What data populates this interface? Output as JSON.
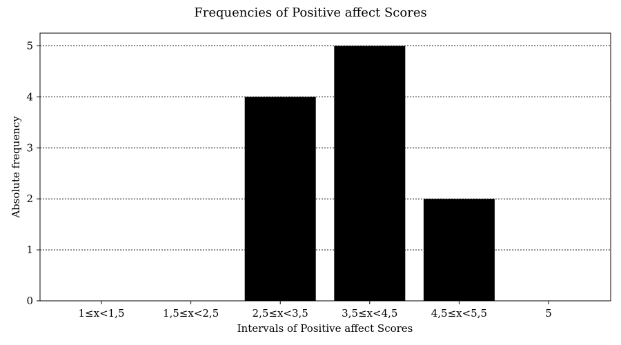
{
  "chart_data": {
    "type": "bar",
    "title": "Frequencies of Positive affect Scores",
    "xlabel": "Intervals of Positive affect Scores",
    "ylabel": "Absolute frequency",
    "categories": [
      "1≤x<1,5",
      "1,5≤x<2,5",
      "2,5≤x<3,5",
      "3,5≤x<4,5",
      "4,5≤x<5,5",
      "5"
    ],
    "values": [
      0,
      0,
      4,
      5,
      2,
      0
    ],
    "ylim": [
      0,
      5.25
    ],
    "yticks": [
      0,
      1,
      2,
      3,
      4,
      5
    ],
    "grid": {
      "y": true,
      "x": false,
      "style": "dotted"
    },
    "bar_color": "#000000",
    "legend": null
  }
}
